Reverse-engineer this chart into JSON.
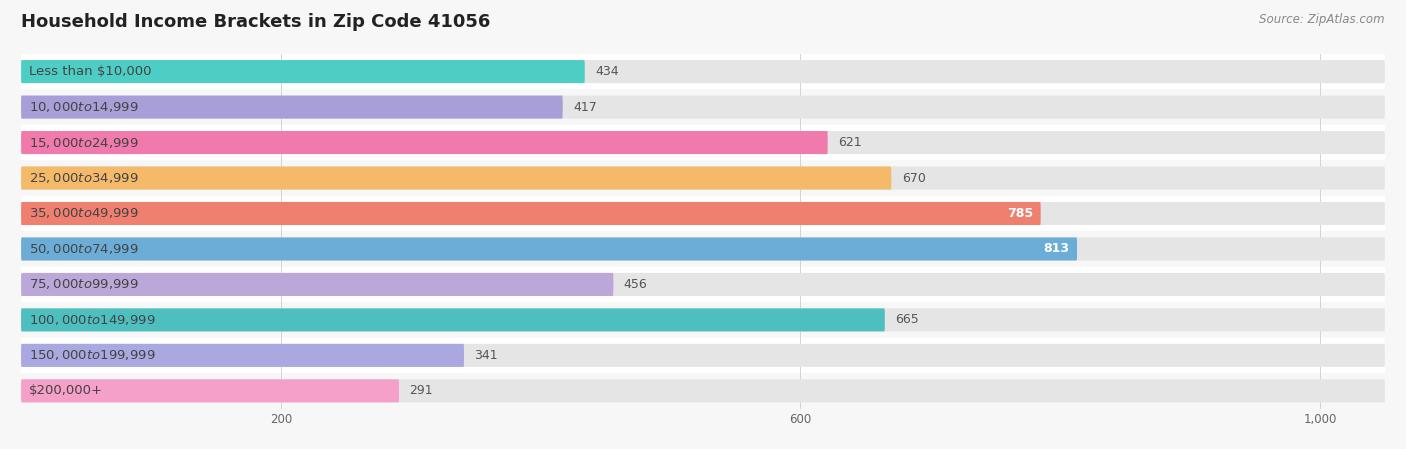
{
  "title": "Household Income Brackets in Zip Code 41056",
  "source": "Source: ZipAtlas.com",
  "categories": [
    "Less than $10,000",
    "$10,000 to $14,999",
    "$15,000 to $24,999",
    "$25,000 to $34,999",
    "$35,000 to $49,999",
    "$50,000 to $74,999",
    "$75,000 to $99,999",
    "$100,000 to $149,999",
    "$150,000 to $199,999",
    "$200,000+"
  ],
  "values": [
    434,
    417,
    621,
    670,
    785,
    813,
    456,
    665,
    341,
    291
  ],
  "bar_colors": [
    "#4ECDC4",
    "#A89FD8",
    "#F07AAB",
    "#F5B96A",
    "#EF8070",
    "#6BADD6",
    "#BBA8D8",
    "#4EBFBF",
    "#AAA8E0",
    "#F5A0C8"
  ],
  "xlim_max": 1050,
  "xticks": [
    200,
    600,
    1000
  ],
  "background_color": "#f7f7f7",
  "bar_bg_color": "#e5e5e5",
  "row_bg_color": "#efefef",
  "title_fontsize": 13,
  "label_fontsize": 9.5,
  "value_fontsize": 9,
  "source_fontsize": 8.5,
  "bar_height": 0.65,
  "high_value_threshold": 750
}
